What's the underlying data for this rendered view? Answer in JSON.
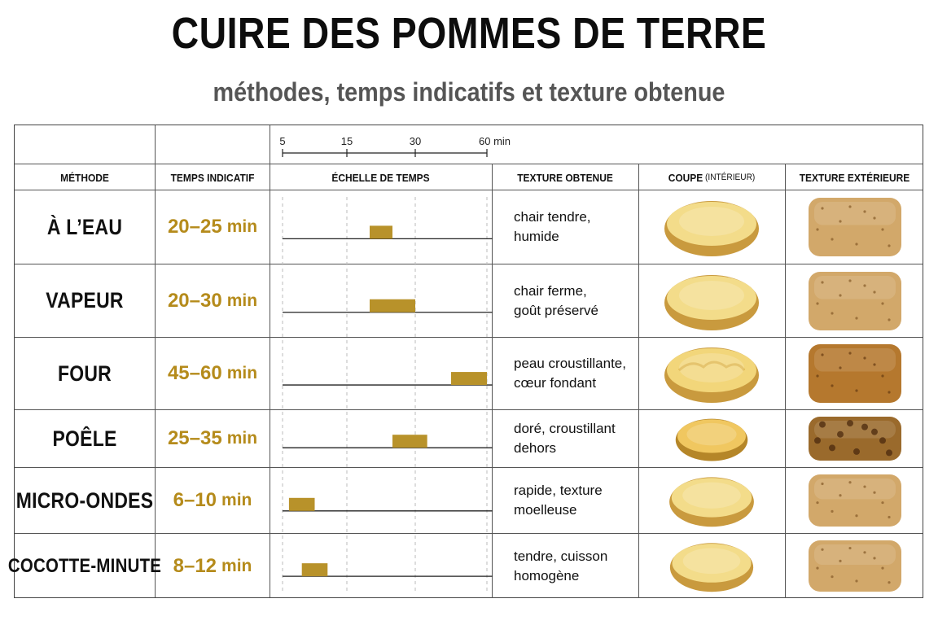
{
  "title": "CUIRE DES POMMES DE TERRE",
  "subtitle": "méthodes, temps indicatifs et texture obtenue",
  "headers": {
    "method": "MÉTHODE",
    "time": "TEMPS INDICATIF",
    "scale": "ÉCHELLE DE TEMPS",
    "texture": "TEXTURE OBTENUE",
    "cut": "COUPE",
    "cut_note": "(INTÉRIEUR)",
    "exterior": "TEXTURE EXTÉRIEURE"
  },
  "colors": {
    "bar": "#b8922a",
    "time_text": "#b58b1b",
    "flesh": "#f3dc8a",
    "skin": "#d2a86a"
  },
  "chart_data": {
    "type": "bar",
    "subtype": "floating-range",
    "xaxis_ticks": [
      5,
      15,
      30,
      60
    ],
    "xaxis_tick_labels": [
      "5",
      "15",
      "30",
      "60 min"
    ],
    "xaxis_scale": "non-linear (tick labels evenly spaced)",
    "categories": [
      "À L’EAU",
      "VAPEUR",
      "FOUR",
      "POÊLE",
      "MICRO-ONDES",
      "COCOTTE-MINUTE"
    ],
    "series": [
      {
        "values": [
          [
            20,
            25
          ],
          [
            20,
            30
          ],
          [
            45,
            60
          ],
          [
            25,
            35
          ],
          [
            6,
            10
          ],
          [
            8,
            12
          ]
        ]
      }
    ]
  },
  "rows": [
    {
      "method": "À L’EAU",
      "time_range": "20–25",
      "time_unit": "min",
      "texture": "chair tendre,\nhumide",
      "cut_icon": "boiled-potato-half-icon",
      "exterior_icon": "smooth-skin-icon"
    },
    {
      "method": "VAPEUR",
      "time_range": "20–30",
      "time_unit": "min",
      "texture": "chair ferme,\ngoût préservé",
      "cut_icon": "steamed-potato-half-icon",
      "exterior_icon": "smooth-skin-icon"
    },
    {
      "method": "FOUR",
      "time_range": "45–60",
      "time_unit": "min",
      "texture": "peau croustillante,\ncœur fondant",
      "cut_icon": "baked-potato-half-icon",
      "exterior_icon": "crispy-skin-icon"
    },
    {
      "method": "POÊLE",
      "time_range": "25–35",
      "time_unit": "min",
      "texture": "doré, croustillant\ndehors",
      "cut_icon": "fried-potato-half-icon",
      "exterior_icon": "golden-skin-icon"
    },
    {
      "method": "MICRO-ONDES",
      "time_range": "6–10",
      "time_unit": "min",
      "texture": "rapide, texture\nmoelleuse",
      "cut_icon": "microwaved-potato-half-icon",
      "exterior_icon": "smooth-skin-icon"
    },
    {
      "method": "COCOTTE-MINUTE",
      "time_range": "8–12",
      "time_unit": "min",
      "texture": "tendre, cuisson\nhomogène",
      "cut_icon": "pressure-cooked-potato-half-icon",
      "exterior_icon": "smooth-skin-icon"
    }
  ]
}
